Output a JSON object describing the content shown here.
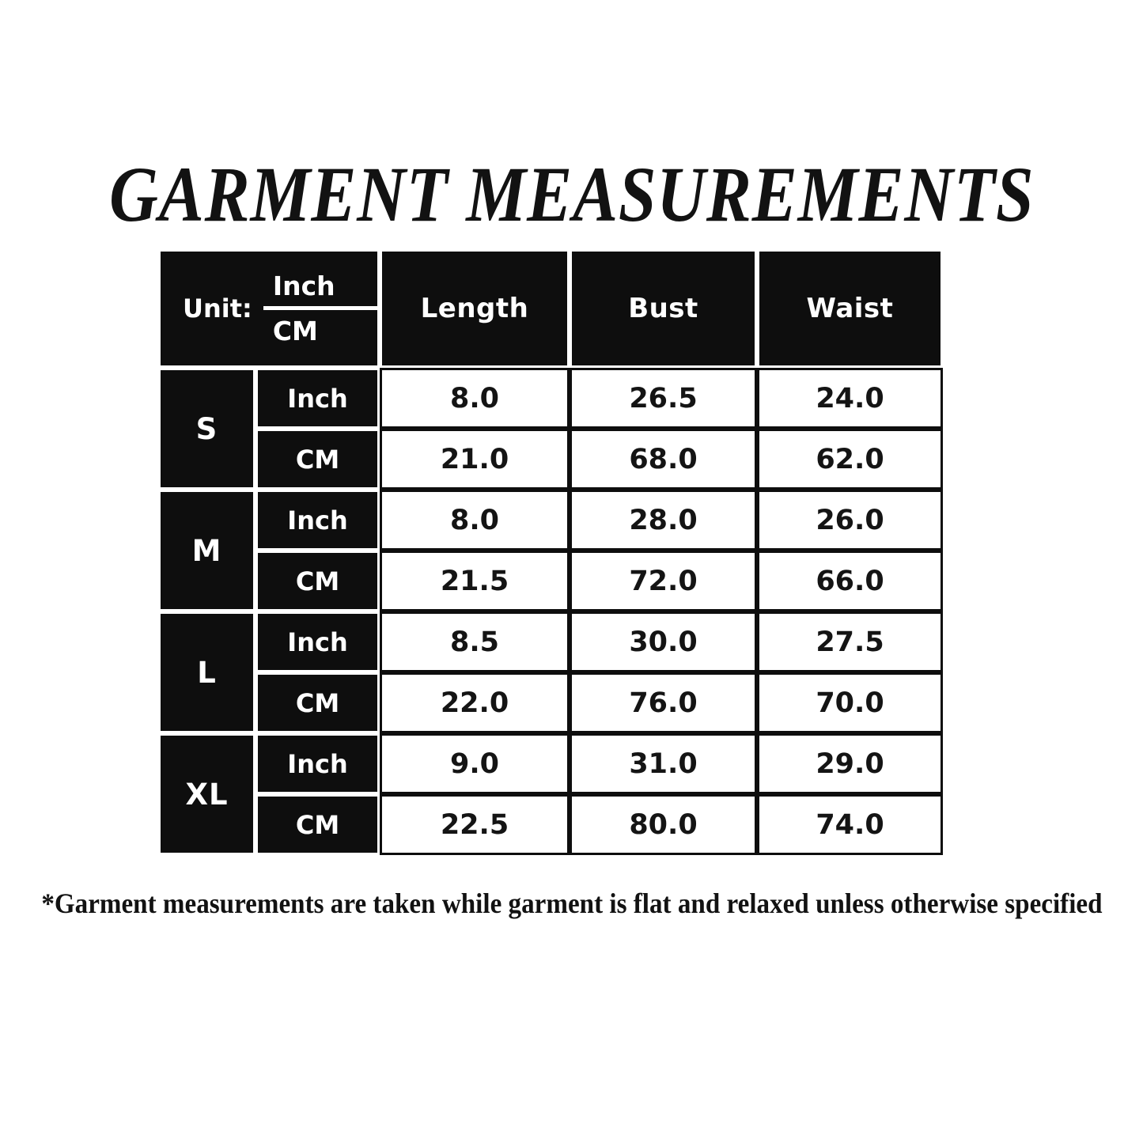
{
  "title": "GARMENT MEASUREMENTS",
  "footnote": "*Garment measurements are taken while garment is flat and relaxed unless otherwise specified",
  "colors": {
    "cell_black": "#0e0e0e",
    "cell_white": "#ffffff",
    "text_on_black": "#ffffff",
    "text_on_white": "#141414"
  },
  "table": {
    "unit_header": {
      "label": "Unit:",
      "top": "Inch",
      "bottom": "CM"
    },
    "columns": [
      "Length",
      "Bust",
      "Waist"
    ],
    "sizes": [
      {
        "label": "S",
        "rows": [
          {
            "unit": "Inch",
            "values": [
              "8.0",
              "26.5",
              "24.0"
            ]
          },
          {
            "unit": "CM",
            "values": [
              "21.0",
              "68.0",
              "62.0"
            ]
          }
        ]
      },
      {
        "label": "M",
        "rows": [
          {
            "unit": "Inch",
            "values": [
              "8.0",
              "28.0",
              "26.0"
            ]
          },
          {
            "unit": "CM",
            "values": [
              "21.5",
              "72.0",
              "66.0"
            ]
          }
        ]
      },
      {
        "label": "L",
        "rows": [
          {
            "unit": "Inch",
            "values": [
              "8.5",
              "30.0",
              "27.5"
            ]
          },
          {
            "unit": "CM",
            "values": [
              "22.0",
              "76.0",
              "70.0"
            ]
          }
        ]
      },
      {
        "label": "XL",
        "rows": [
          {
            "unit": "Inch",
            "values": [
              "9.0",
              "31.0",
              "29.0"
            ]
          },
          {
            "unit": "CM",
            "values": [
              "22.5",
              "80.0",
              "74.0"
            ]
          }
        ]
      }
    ]
  },
  "chart_data": {
    "type": "table",
    "title": "GARMENT MEASUREMENTS",
    "columns": [
      "Size",
      "Unit",
      "Length",
      "Bust",
      "Waist"
    ],
    "rows": [
      [
        "S",
        "Inch",
        8.0,
        26.5,
        24.0
      ],
      [
        "S",
        "CM",
        21.0,
        68.0,
        62.0
      ],
      [
        "M",
        "Inch",
        8.0,
        28.0,
        26.0
      ],
      [
        "M",
        "CM",
        21.5,
        72.0,
        66.0
      ],
      [
        "L",
        "Inch",
        8.5,
        30.0,
        27.5
      ],
      [
        "L",
        "CM",
        22.0,
        76.0,
        70.0
      ],
      [
        "XL",
        "Inch",
        9.0,
        31.0,
        29.0
      ],
      [
        "XL",
        "CM",
        22.5,
        80.0,
        74.0
      ]
    ],
    "footnote": "*Garment measurements are taken while garment is flat and relaxed unless otherwise specified"
  }
}
